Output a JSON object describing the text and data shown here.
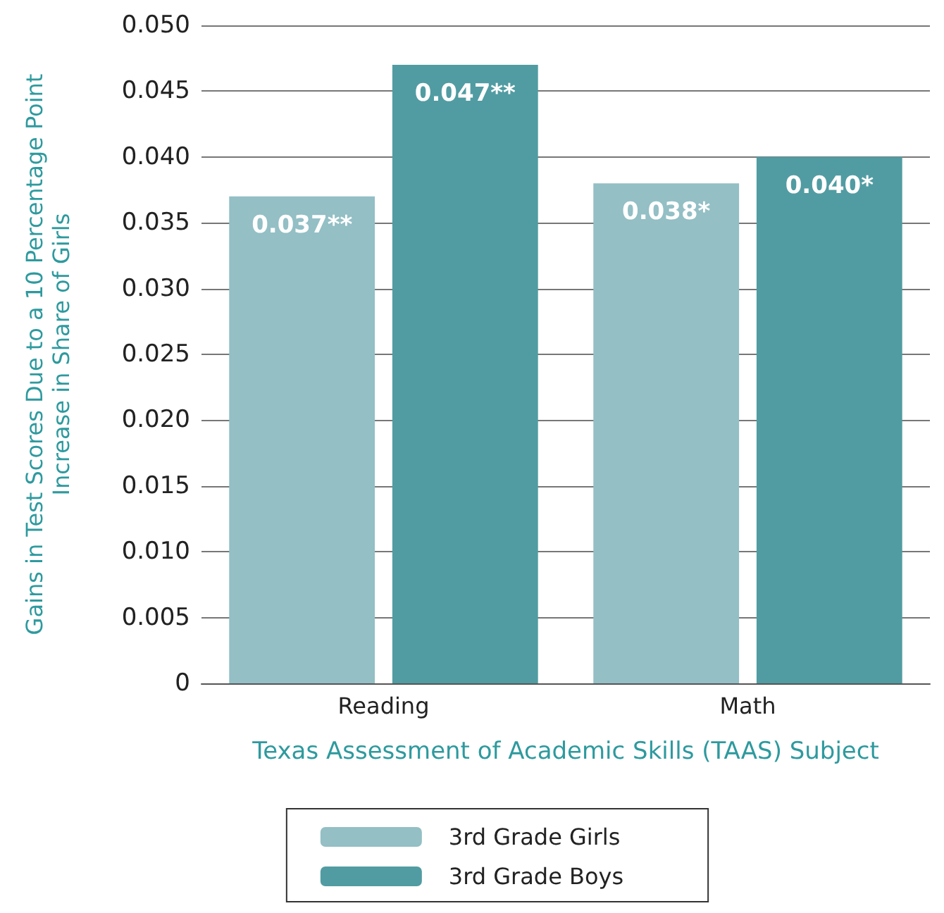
{
  "chart_data": {
    "type": "bar",
    "xlabel": "Texas Assessment of Academic Skills (TAAS) Subject",
    "ylabel": "Gains in Test Scores Due to a 10 Percentage Point\nIncrease in Share of Girls",
    "categories": [
      "Reading",
      "Math"
    ],
    "series": [
      {
        "name": "3rd Grade Girls",
        "color": "#93bfc5",
        "values": [
          0.037,
          0.038
        ],
        "value_labels": [
          "0.037**",
          "0.038*"
        ]
      },
      {
        "name": "3rd Grade Boys",
        "color": "#519ca2",
        "values": [
          0.047,
          0.04
        ],
        "value_labels": [
          "0.047**",
          "0.040*"
        ]
      }
    ],
    "ylim": [
      0,
      0.05
    ],
    "yticks": [
      {
        "value": 0,
        "label": "0"
      },
      {
        "value": 0.005,
        "label": "0.005"
      },
      {
        "value": 0.01,
        "label": "0.010"
      },
      {
        "value": 0.015,
        "label": "0.015"
      },
      {
        "value": 0.02,
        "label": "0.020"
      },
      {
        "value": 0.025,
        "label": "0.025"
      },
      {
        "value": 0.03,
        "label": "0.030"
      },
      {
        "value": 0.035,
        "label": "0.035"
      },
      {
        "value": 0.04,
        "label": "0.040"
      },
      {
        "value": 0.045,
        "label": "0.045"
      },
      {
        "value": 0.05,
        "label": "0.050"
      }
    ],
    "grid": "y",
    "legend": "bottom"
  }
}
